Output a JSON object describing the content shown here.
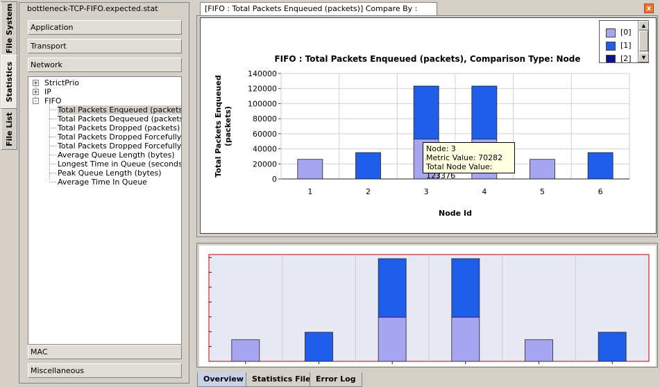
{
  "vtabs": [
    {
      "label": "File System"
    },
    {
      "label": "Statistics"
    },
    {
      "label": "File List"
    }
  ],
  "left_panel": {
    "title": "bottleneck-TCP-FIFO.expected.stat",
    "top_categories": [
      "Application",
      "Transport",
      "Network"
    ],
    "bottom_categories": [
      "MAC",
      "Miscellaneous"
    ],
    "tree": [
      {
        "label": "StrictPrio",
        "expander": "+"
      },
      {
        "label": "IP",
        "expander": "+"
      },
      {
        "label": "FIFO",
        "expander": "-"
      }
    ],
    "fifo_children": [
      "Total Packets Enqueued (packets)",
      "Total Packets Dequeued (packets)",
      "Total Packets Dropped (packets)",
      "Total Packets Dropped Forcefully ...",
      "Total Packets Dropped Forcefully ...",
      "Average Queue Length (bytes)",
      "Longest Time in Queue (seconds)",
      "Peak Queue Length (bytes)",
      "Average Time In Queue"
    ],
    "selected_index": 0
  },
  "chart_tab": {
    "label": "[FIFO :  Total Packets Enqueued (packets)] Compare By : Node ID",
    "close_symbol": "x"
  },
  "legend": {
    "items": [
      {
        "label": "[0]",
        "color": "#a6a6f0"
      },
      {
        "label": "[1]",
        "color": "#1f5ee8"
      },
      {
        "label": "[2]",
        "color": "#10108a"
      }
    ],
    "scroll_up": "▲",
    "scroll_down": "▼"
  },
  "tooltip": {
    "node": "Node: 3",
    "metric": "Metric Value: 70282",
    "total": "Total Node Value: 123376"
  },
  "chart_data": {
    "type": "bar",
    "stacked": true,
    "title": "FIFO :  Total Packets Enqueued (packets), Comparison Type: Node",
    "xlabel": "Node Id",
    "ylabel": "Total Packets Enqueued (packets)",
    "categories": [
      "1",
      "2",
      "3",
      "4",
      "5",
      "6"
    ],
    "yticks": [
      0,
      20000,
      40000,
      60000,
      80000,
      100000,
      120000,
      140000
    ],
    "ytick_labels": [
      "0",
      "20000",
      "40000",
      "60000",
      "80000",
      "100000",
      "120000",
      "140000"
    ],
    "ylim": [
      0,
      140000
    ],
    "grid": true,
    "series": [
      {
        "name": "[0]",
        "color": "#a6a6f0",
        "values": [
          26000,
          0,
          53094,
          53094,
          26000,
          0
        ]
      },
      {
        "name": "[1]",
        "color": "#1f5ee8",
        "values": [
          0,
          35000,
          70282,
          70282,
          0,
          35000
        ]
      }
    ]
  },
  "bottom_tabs": [
    {
      "label": "Overview",
      "active": true
    },
    {
      "label": "Statistics File",
      "active": false
    },
    {
      "label": "Error Log",
      "active": false
    }
  ]
}
